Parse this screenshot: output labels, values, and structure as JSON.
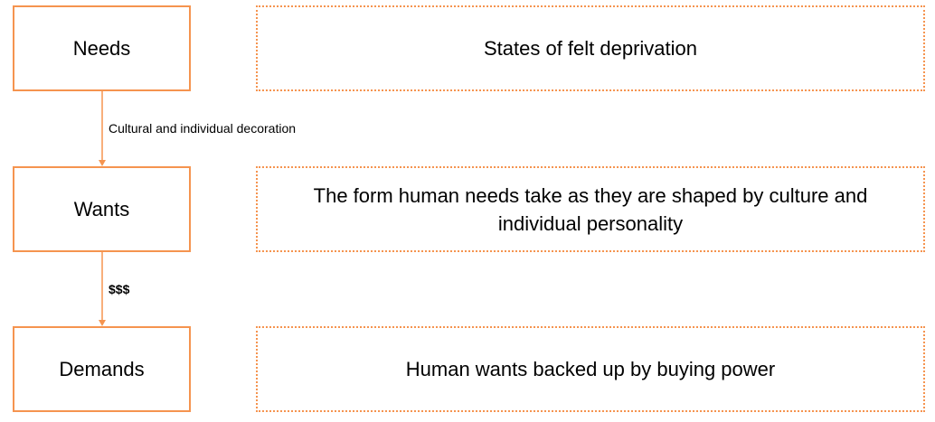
{
  "diagram": {
    "rows": [
      {
        "term": "Needs",
        "definition": "States of felt deprivation"
      },
      {
        "term": "Wants",
        "definition": "The form human needs take as they are shaped by culture and individual personality"
      },
      {
        "term": "Demands",
        "definition": "Human wants backed up by buying power"
      }
    ],
    "edges": [
      {
        "from": "Needs",
        "to": "Wants",
        "label": "Cultural and individual decoration"
      },
      {
        "from": "Wants",
        "to": "Demands",
        "label": "$$$"
      }
    ]
  },
  "colors": {
    "accent": "#F5944F",
    "text": "#000000",
    "background": "#FFFFFF"
  }
}
